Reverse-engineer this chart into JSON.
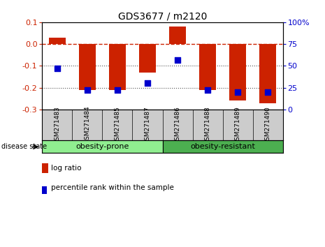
{
  "title": "GDS3677 / m2120",
  "samples": [
    "GSM271483",
    "GSM271484",
    "GSM271485",
    "GSM271487",
    "GSM271486",
    "GSM271488",
    "GSM271489",
    "GSM271490"
  ],
  "log_ratio": [
    0.03,
    -0.21,
    -0.21,
    -0.13,
    0.08,
    -0.21,
    -0.26,
    -0.27
  ],
  "percentile_rank": [
    47,
    22,
    22,
    30,
    57,
    22,
    20,
    20
  ],
  "groups": [
    {
      "label": "obesity-prone",
      "start": 0,
      "end": 4,
      "color": "#90ee90"
    },
    {
      "label": "obesity-resistant",
      "start": 4,
      "end": 8,
      "color": "#4caf50"
    }
  ],
  "bar_color": "#cc2200",
  "dot_color": "#0000cc",
  "left_ylim": [
    -0.3,
    0.1
  ],
  "left_yticks": [
    -0.3,
    -0.2,
    -0.1,
    0.0,
    0.1
  ],
  "right_ylim": [
    0,
    100
  ],
  "right_yticks": [
    0,
    25,
    50,
    75,
    100
  ],
  "right_yticklabels": [
    "0",
    "25",
    "50",
    "75",
    "100%"
  ],
  "hline_color": "#cc2200",
  "dotted_color": "#555555",
  "bg_color": "#ffffff",
  "plot_bg": "#ffffff",
  "label_bg": "#cccccc",
  "group1_color": "#aaeebb",
  "group2_color": "#55cc55"
}
